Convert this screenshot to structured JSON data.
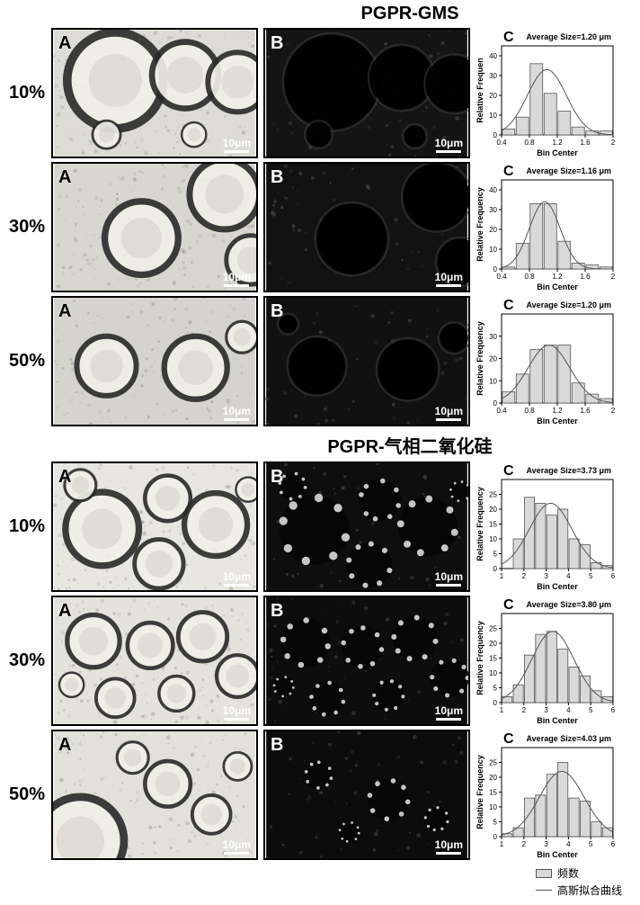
{
  "sections": [
    {
      "title": "PGPR-GMS",
      "rows": [
        {
          "percent": "10%",
          "avg": "Average Size=1.20 μm",
          "bins": {
            "xmin": 0.4,
            "xmax": 2.0,
            "xticks": [
              0.4,
              0.8,
              1.2,
              1.6,
              2.0
            ],
            "ymax": 45,
            "yticks": [
              0,
              10,
              20,
              30,
              40
            ],
            "centers": [
              0.5,
              0.7,
              0.9,
              1.1,
              1.3,
              1.5,
              1.7,
              1.9
            ],
            "heights": [
              3,
              9,
              36,
              21,
              12,
              4,
              2,
              2
            ],
            "gauss_mu": 1.05,
            "gauss_sigma": 0.28,
            "gauss_amp": 33
          },
          "imgA": {
            "bg": "#dcdbd6",
            "style": "bf",
            "circles": [
              [
                70,
                58,
                55,
                0.25
              ],
              [
                150,
                52,
                38,
                0.25
              ],
              [
                210,
                60,
                34,
                0.25
              ],
              [
                60,
                120,
                16,
                0.25
              ],
              [
                160,
                120,
                14,
                0.2
              ]
            ]
          },
          "imgB": {
            "bg": "#141414",
            "style": "df",
            "circles": [
              [
                75,
                60,
                54
              ],
              [
                155,
                55,
                36
              ],
              [
                215,
                62,
                32
              ],
              [
                60,
                120,
                14
              ],
              [
                170,
                122,
                12
              ]
            ]
          }
        },
        {
          "percent": "30%",
          "avg": "Average Size=1.16 μm",
          "bins": {
            "xmin": 0.4,
            "xmax": 2.0,
            "xticks": [
              0.4,
              0.8,
              1.2,
              1.6,
              2.0
            ],
            "ymax": 45,
            "yticks": [
              0,
              10,
              20,
              30,
              40
            ],
            "centers": [
              0.5,
              0.7,
              0.9,
              1.1,
              1.3,
              1.5,
              1.7,
              1.9
            ],
            "heights": [
              1,
              13,
              33,
              33,
              14,
              3,
              2,
              1
            ],
            "gauss_mu": 1.02,
            "gauss_sigma": 0.22,
            "gauss_amp": 34
          },
          "imgA": {
            "bg": "#d8d6d0",
            "style": "bf",
            "circles": [
              [
                100,
                85,
                42,
                0.3
              ],
              [
                195,
                35,
                40,
                0.25
              ],
              [
                225,
                110,
                28,
                0.2
              ]
            ]
          },
          "imgB": {
            "bg": "#121212",
            "style": "df",
            "circles": [
              [
                98,
                86,
                40
              ],
              [
                195,
                38,
                38
              ],
              [
                222,
                112,
                26
              ]
            ]
          }
        },
        {
          "percent": "50%",
          "avg": "Average Size=1.20 μm",
          "bins": {
            "xmin": 0.4,
            "xmax": 2.0,
            "xticks": [
              0.4,
              0.8,
              1.2,
              1.6,
              2.0
            ],
            "ymax": 40,
            "yticks": [
              0,
              10,
              20,
              30
            ],
            "centers": [
              0.5,
              0.7,
              0.9,
              1.1,
              1.3,
              1.5,
              1.7,
              1.9
            ],
            "heights": [
              5,
              13,
              24,
              26,
              26,
              9,
              4,
              2
            ],
            "gauss_mu": 1.08,
            "gauss_sigma": 0.3,
            "gauss_amp": 26
          },
          "imgA": {
            "bg": "#d5d3cd",
            "style": "bf",
            "circles": [
              [
                60,
                78,
                34,
                0.3
              ],
              [
                162,
                80,
                36,
                0.3
              ],
              [
                215,
                45,
                18,
                0.2
              ]
            ]
          },
          "imgB": {
            "bg": "#111111",
            "style": "df",
            "circles": [
              [
                58,
                78,
                32
              ],
              [
                162,
                82,
                34
              ],
              [
                215,
                46,
                16
              ],
              [
                25,
                30,
                10
              ]
            ]
          }
        }
      ]
    },
    {
      "title": "PGPR-气相二氧化硅",
      "rows": [
        {
          "percent": "10%",
          "avg": "Average Size=3.73 μm",
          "bins": {
            "xmin": 1,
            "xmax": 6,
            "xticks": [
              1,
              2,
              3,
              4,
              5,
              6
            ],
            "ymax": 30,
            "yticks": [
              0,
              5,
              10,
              15,
              20,
              25
            ],
            "centers": [
              1.25,
              1.75,
              2.25,
              2.75,
              3.25,
              3.75,
              4.25,
              4.75,
              5.25,
              5.75
            ],
            "heights": [
              0,
              10,
              24,
              22,
              18,
              20,
              10,
              8,
              2,
              1
            ],
            "gauss_mu": 3.2,
            "gauss_sigma": 0.95,
            "gauss_amp": 22
          },
          "imgA": {
            "bg": "#e7e6e1",
            "style": "bf",
            "circles": [
              [
                55,
                75,
                42,
                0.2
              ],
              [
                130,
                40,
                26,
                0.2
              ],
              [
                185,
                70,
                36,
                0.2
              ],
              [
                120,
                115,
                28,
                0.2
              ],
              [
                222,
                30,
                14,
                0.2
              ],
              [
                30,
                25,
                18,
                0.2
              ]
            ]
          },
          "imgB": {
            "bg": "#0e0e0e",
            "style": "df-ring",
            "circles": [
              [
                55,
                76,
                40
              ],
              [
                130,
                42,
                24
              ],
              [
                185,
                72,
                34
              ],
              [
                118,
                116,
                26
              ],
              [
                222,
                32,
                12
              ],
              [
                30,
                26,
                16
              ]
            ]
          }
        },
        {
          "percent": "30%",
          "avg": "Average Size=3.80 μm",
          "bins": {
            "xmin": 1,
            "xmax": 6,
            "xticks": [
              1,
              2,
              3,
              4,
              5,
              6
            ],
            "ymax": 30,
            "yticks": [
              0,
              5,
              10,
              15,
              20,
              25
            ],
            "centers": [
              1.25,
              1.75,
              2.25,
              2.75,
              3.25,
              3.75,
              4.25,
              4.75,
              5.25,
              5.75
            ],
            "heights": [
              2,
              6,
              16,
              23,
              24,
              18,
              12,
              9,
              4,
              2
            ],
            "gauss_mu": 3.3,
            "gauss_sigma": 0.95,
            "gauss_amp": 24
          },
          "imgA": {
            "bg": "#e4e2dc",
            "style": "bf",
            "circles": [
              [
                45,
                50,
                30,
                0.25
              ],
              [
                110,
                55,
                26,
                0.25
              ],
              [
                170,
                45,
                28,
                0.25
              ],
              [
                210,
                90,
                24,
                0.25
              ],
              [
                70,
                115,
                22,
                0.25
              ],
              [
                140,
                110,
                20,
                0.25
              ],
              [
                20,
                100,
                14,
                0.2
              ]
            ]
          },
          "imgB": {
            "bg": "#0d0d0d",
            "style": "df-ring",
            "circles": [
              [
                45,
                52,
                28
              ],
              [
                110,
                57,
                24
              ],
              [
                170,
                47,
                26
              ],
              [
                210,
                92,
                22
              ],
              [
                70,
                116,
                20
              ],
              [
                140,
                112,
                18
              ],
              [
                20,
                102,
                12
              ]
            ]
          }
        },
        {
          "percent": "50%",
          "avg": "Average Size=4.03 μm",
          "bins": {
            "xmin": 1,
            "xmax": 6,
            "xticks": [
              1,
              2,
              3,
              4,
              5,
              6
            ],
            "ymax": 30,
            "yticks": [
              0,
              5,
              10,
              15,
              20,
              25
            ],
            "centers": [
              1.25,
              1.75,
              2.25,
              2.75,
              3.25,
              3.75,
              4.25,
              4.75,
              5.25,
              5.75
            ],
            "heights": [
              1,
              3,
              13,
              14,
              21,
              25,
              13,
              12,
              5,
              3
            ],
            "gauss_mu": 3.7,
            "gauss_sigma": 1.0,
            "gauss_amp": 22
          },
          "imgA": {
            "bg": "#e2e0da",
            "style": "bf",
            "circles": [
              [
                30,
                125,
                50,
                0.25
              ],
              [
                130,
                60,
                26,
                0.25
              ],
              [
                180,
                95,
                22,
                0.25
              ],
              [
                90,
                30,
                18,
                0.2
              ],
              [
                210,
                40,
                16,
                0.2
              ]
            ]
          },
          "imgB": {
            "bg": "#0c0c0c",
            "style": "df-ring",
            "circles": [
              [
                140,
                78,
                24
              ],
              [
                60,
                50,
                16
              ],
              [
                195,
                100,
                14
              ],
              [
                95,
                115,
                12
              ]
            ]
          }
        }
      ]
    }
  ],
  "colors": {
    "bar_fill": "#d9d9d9",
    "bar_stroke": "#555555",
    "curve": "#555555",
    "axis": "#000000",
    "text": "#000000"
  },
  "axis": {
    "xlabel": "Bin Center",
    "ylabel_short": "Relative Frequen",
    "ylabel": "Relative Frequency",
    "label_fontsize": 9,
    "tick_fontsize": 8,
    "title_fontsize": 9
  },
  "scale_label": "10μm",
  "legend": {
    "freq": "频数",
    "gauss": "高斯拟合曲线"
  }
}
